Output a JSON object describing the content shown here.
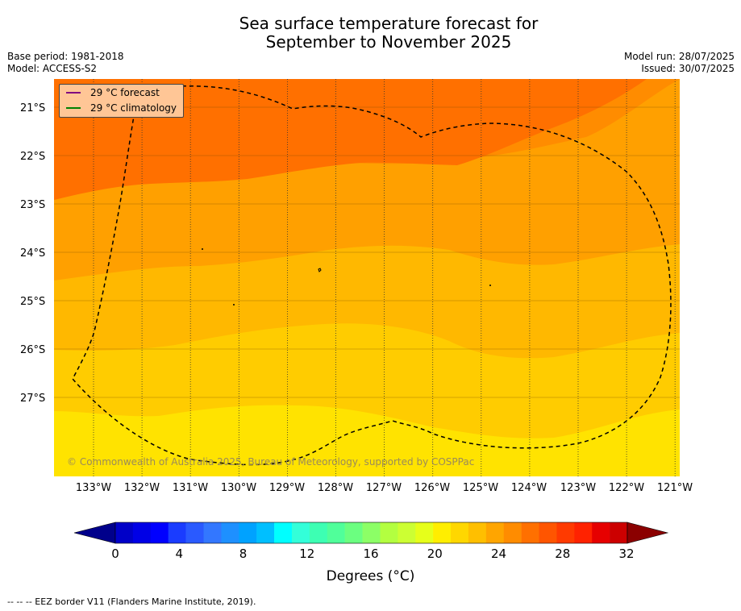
{
  "title": {
    "line1": "Sea surface temperature forecast for",
    "line2": "September to November 2025"
  },
  "meta": {
    "base_period": "Base period: 1981-2018",
    "model": "Model: ACCESS-S2",
    "model_run": "Model run: 28/07/2025",
    "issued": "Issued: 30/07/2025"
  },
  "legend": {
    "forecast_label": "29 °C  forecast",
    "forecast_color": "#800080",
    "climatology_label": "29 °C  climatology",
    "climatology_color": "#008000"
  },
  "axes": {
    "lat_labels": [
      "21°S",
      "22°S",
      "23°S",
      "24°S",
      "25°S",
      "26°S",
      "27°S"
    ],
    "lon_labels": [
      "133°W",
      "132°W",
      "131°W",
      "130°W",
      "129°W",
      "128°W",
      "127°W",
      "126°W",
      "125°W",
      "124°W",
      "123°W",
      "122°W",
      "121°W"
    ]
  },
  "copyright": "© Commonwealth of Australia 2025, Bureau of Meteorology, supported by COSPPac",
  "colorbar": {
    "ticks": [
      "0",
      "4",
      "8",
      "12",
      "16",
      "20",
      "24",
      "28",
      "32"
    ],
    "label": "Degrees (°C)",
    "colors": [
      "#00008b",
      "#0000c8",
      "#0000e6",
      "#0000ff",
      "#1a3cff",
      "#2a5aff",
      "#3377ff",
      "#1e90ff",
      "#00a2ff",
      "#00bfff",
      "#00ffff",
      "#33ffd9",
      "#3dffb3",
      "#50ff9a",
      "#6bff80",
      "#8cff66",
      "#b3ff40",
      "#ccff33",
      "#e6ff1a",
      "#ffee00",
      "#ffd700",
      "#ffbf00",
      "#ffa500",
      "#ff8c00",
      "#ff7000",
      "#ff5500",
      "#ff3a00",
      "#ff2200",
      "#e60000",
      "#cc0000",
      "#8b0000"
    ]
  },
  "map_colors": {
    "c21": "#ff7000",
    "c22": "#ff8c00",
    "c23": "#ffa000",
    "c24": "#ffb800",
    "c25": "#ffcc00",
    "c26": "#ffe300"
  },
  "footer": "--  --  -- EEZ border V11 (Flanders Marine Institute, 2019)."
}
